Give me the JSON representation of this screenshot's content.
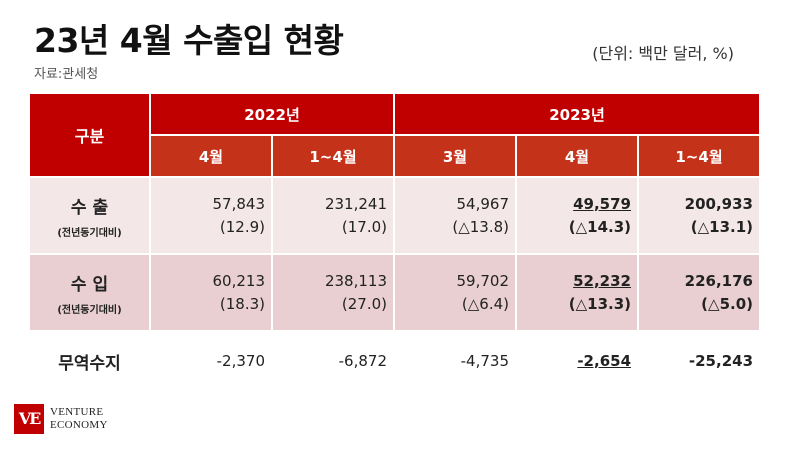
{
  "header": {
    "title": "23년 4월 수출입 현황",
    "source": "자료:관세청",
    "unit": "(단위: 백만 달러, %)"
  },
  "table": {
    "corner_label": "구분",
    "groups": [
      "2022년",
      "2023년"
    ],
    "sub_headers": [
      "4월",
      "1~4월",
      "3월",
      "4월",
      "1~4월"
    ],
    "rows": [
      {
        "label": "수 출",
        "sublabel": "(전년동기대비)",
        "values": [
          "57,843",
          "231,241",
          "54,967",
          "49,579",
          "200,933"
        ],
        "changes": [
          "(12.9)",
          "(17.0)",
          "(△13.8)",
          "(△14.3)",
          "(△13.1)"
        ]
      },
      {
        "label": "수 입",
        "sublabel": "(전년동기대비)",
        "values": [
          "60,213",
          "238,113",
          "59,702",
          "52,232",
          "226,176"
        ],
        "changes": [
          "(18.3)",
          "(27.0)",
          "(△6.4)",
          "(△13.3)",
          "(△5.0)"
        ]
      },
      {
        "label": "무역수지",
        "values": [
          "-2,370",
          "-6,872",
          "-4,735",
          "-2,654",
          "-25,243"
        ]
      }
    ]
  },
  "logo": {
    "mark": "VE",
    "line1": "VENTURE",
    "line2": "ECONOMY"
  },
  "colors": {
    "header_red": "#c00000",
    "subheader_red": "#c4321a",
    "row_light": "#f4e7e7",
    "row_dark": "#e9cfd1"
  }
}
